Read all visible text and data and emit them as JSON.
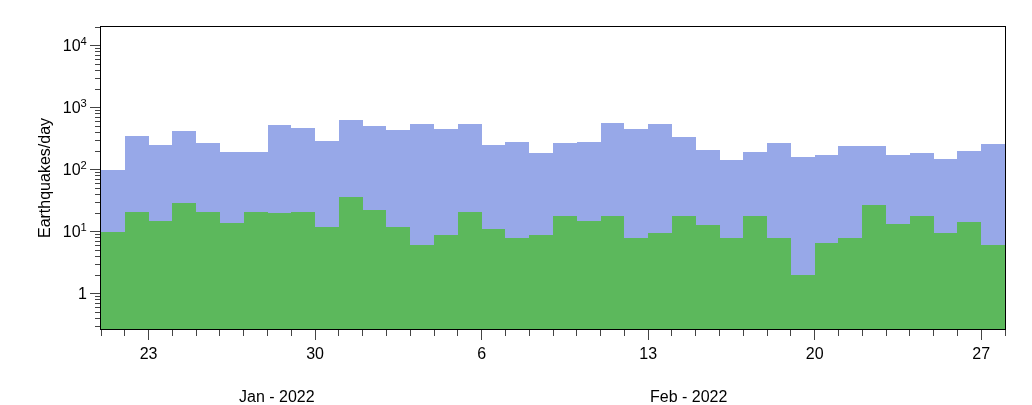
{
  "chart_data": {
    "type": "bar",
    "ylabel": "Earthquakes/day",
    "x": [
      "2022-01-21T12:00",
      "2022-01-22T12:00",
      "2022-01-23T12:00",
      "2022-01-24T12:00",
      "2022-01-25T12:00",
      "2022-01-26T12:00",
      "2022-01-27T12:00",
      "2022-01-28T12:00",
      "2022-01-29T12:00",
      "2022-01-30T12:00",
      "2022-01-31T12:00",
      "2022-02-01T12:00",
      "2022-02-02T12:00",
      "2022-02-03T12:00",
      "2022-02-04T12:00",
      "2022-02-05T12:00",
      "2022-02-06T12:00",
      "2022-02-07T12:00",
      "2022-02-08T12:00",
      "2022-02-09T12:00",
      "2022-02-10T12:00",
      "2022-02-11T12:00",
      "2022-02-12T12:00",
      "2022-02-13T12:00",
      "2022-02-14T12:00",
      "2022-02-15T12:00",
      "2022-02-16T12:00",
      "2022-02-17T12:00",
      "2022-02-18T12:00",
      "2022-02-19T12:00",
      "2022-02-20T12:00",
      "2022-02-21T12:00",
      "2022-02-22T12:00",
      "2022-02-23T12:00",
      "2022-02-24T12:00",
      "2022-02-25T12:00",
      "2022-02-26T12:00",
      "2022-02-27T12:00"
    ],
    "series": [
      {
        "color": "#5cb85c",
        "values": [
          10,
          21,
          15,
          29,
          21,
          14,
          21,
          20,
          21,
          12,
          36,
          22,
          12,
          6,
          9,
          21,
          11,
          8,
          9,
          18,
          15,
          18,
          8,
          9.6,
          18,
          13,
          8,
          18,
          8,
          2,
          6.7,
          8,
          27,
          13.5,
          18,
          9.6,
          14.4,
          6
        ]
      },
      {
        "color": "#97a8e8",
        "values": [
          90,
          334,
          239,
          395,
          249,
          179,
          172,
          505,
          453,
          273,
          602,
          476,
          417,
          544,
          442,
          529,
          237,
          272,
          177,
          247,
          263,
          540,
          437,
          535,
          323,
          198,
          136,
          175,
          260,
          158,
          163,
          231,
          210,
          157,
          166,
          138,
          184,
          249
        ]
      }
    ],
    "stacked": true,
    "log": "y",
    "grid": false,
    "legend": false,
    "xlim": [
      "2022-01-21",
      "2022-02-28"
    ],
    "xticks": [
      {
        "value": "2022-01-23",
        "label": "23"
      },
      {
        "value": "2022-01-30",
        "label": "30"
      },
      {
        "value": "2022-02-06",
        "label": "6"
      },
      {
        "value": "2022-02-13",
        "label": "13"
      },
      {
        "value": "2022-02-20",
        "label": "20"
      },
      {
        "value": "2022-02-27",
        "label": "27"
      }
    ],
    "ylim": [
      0.27,
      20000
    ],
    "yticks": [
      {
        "value": 1,
        "label": "1"
      },
      {
        "value": 10,
        "label": "10$^{1}$"
      },
      {
        "value": 100,
        "label": "10$^{2}$"
      },
      {
        "value": 1000,
        "label": "10$^{3}$"
      },
      {
        "value": 10000,
        "label": "10$^{4}$"
      }
    ],
    "annotations": [
      "Jan - 2022",
      "Feb - 2022"
    ]
  }
}
